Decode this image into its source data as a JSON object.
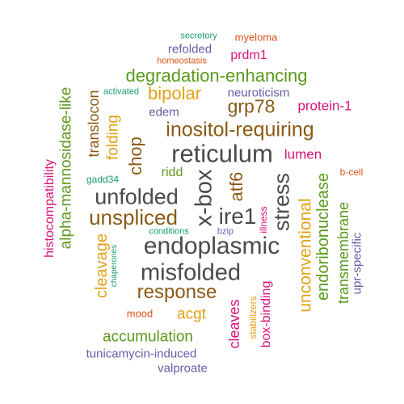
{
  "colors": {
    "dark": "#4a4a4a",
    "brown": "#8a5a14",
    "green": "#5a9a1c",
    "gold": "#e3a017",
    "magenta": "#d8137a",
    "purple": "#6a5aa8",
    "orange": "#d9541a",
    "teal": "#1a9a72"
  },
  "words": [
    {
      "id": "reticulum",
      "text": "reticulum",
      "color": "dark"
    },
    {
      "id": "endoplasmic",
      "text": "endoplasmic",
      "color": "dark"
    },
    {
      "id": "misfolded",
      "text": "misfolded",
      "color": "dark"
    },
    {
      "id": "unfolded",
      "text": "unfolded",
      "color": "dark"
    },
    {
      "id": "x-box",
      "text": "x-box",
      "color": "dark"
    },
    {
      "id": "stress",
      "text": "stress",
      "color": "dark"
    },
    {
      "id": "ire1",
      "text": "ire1",
      "color": "dark"
    },
    {
      "id": "inositol-requiring",
      "text": "inositol-requiring",
      "color": "brown"
    },
    {
      "id": "unspliced",
      "text": "unspliced",
      "color": "brown"
    },
    {
      "id": "grp78",
      "text": "grp78",
      "color": "brown"
    },
    {
      "id": "response",
      "text": "response",
      "color": "brown"
    },
    {
      "id": "atf6",
      "text": "atf6",
      "color": "brown"
    },
    {
      "id": "chop",
      "text": "chop",
      "color": "brown"
    },
    {
      "id": "translocon",
      "text": "translocon",
      "color": "brown"
    },
    {
      "id": "degradation-enhancing",
      "text": "degradation-enhancing",
      "color": "green"
    },
    {
      "id": "alpha-mannosidase-like",
      "text": "alpha-mannosidase-like",
      "color": "green"
    },
    {
      "id": "accumulation",
      "text": "accumulation",
      "color": "green"
    },
    {
      "id": "transmembrane",
      "text": "transmembrane",
      "color": "green"
    },
    {
      "id": "endoribonuclease",
      "text": "endoribonuclease",
      "color": "green"
    },
    {
      "id": "ridd",
      "text": "ridd",
      "color": "green"
    },
    {
      "id": "bipolar",
      "text": "bipolar",
      "color": "gold"
    },
    {
      "id": "folding",
      "text": "folding",
      "color": "gold"
    },
    {
      "id": "cleavage",
      "text": "cleavage",
      "color": "gold"
    },
    {
      "id": "acgt",
      "text": "acgt",
      "color": "gold"
    },
    {
      "id": "unconventional",
      "text": "unconventional",
      "color": "gold"
    },
    {
      "id": "stabilizers",
      "text": "stabilizers",
      "color": "gold"
    },
    {
      "id": "protein-1",
      "text": "protein-1",
      "color": "magenta"
    },
    {
      "id": "lumen",
      "text": "lumen",
      "color": "magenta"
    },
    {
      "id": "prdm1",
      "text": "prdm1",
      "color": "magenta"
    },
    {
      "id": "histocompatibility",
      "text": "histocompatibility",
      "color": "magenta"
    },
    {
      "id": "cleaves",
      "text": "cleaves",
      "color": "magenta"
    },
    {
      "id": "box-binding",
      "text": "box-binding",
      "color": "magenta"
    },
    {
      "id": "illness",
      "text": "illness",
      "color": "magenta"
    },
    {
      "id": "neuroticism",
      "text": "neuroticism",
      "color": "purple"
    },
    {
      "id": "edem",
      "text": "edem",
      "color": "purple"
    },
    {
      "id": "refolded",
      "text": "refolded",
      "color": "purple"
    },
    {
      "id": "tunicamycin-induced",
      "text": "tunicamycin-induced",
      "color": "purple"
    },
    {
      "id": "valproate",
      "text": "valproate",
      "color": "purple"
    },
    {
      "id": "upr-specific",
      "text": "upr-specific",
      "color": "purple"
    },
    {
      "id": "bzip",
      "text": "bzip",
      "color": "purple"
    },
    {
      "id": "myeloma",
      "text": "myeloma",
      "color": "orange"
    },
    {
      "id": "homeostasis",
      "text": "homeostasis",
      "color": "orange"
    },
    {
      "id": "b-cell",
      "text": "b-cell",
      "color": "orange"
    },
    {
      "id": "mood",
      "text": "mood",
      "color": "orange"
    },
    {
      "id": "secretory",
      "text": "secretory",
      "color": "teal"
    },
    {
      "id": "activated",
      "text": "activated",
      "color": "teal"
    },
    {
      "id": "gadd34",
      "text": "gadd34",
      "color": "teal"
    },
    {
      "id": "conditions",
      "text": "conditions",
      "color": "teal"
    },
    {
      "id": "chaperones",
      "text": "chaperones",
      "color": "teal"
    }
  ]
}
